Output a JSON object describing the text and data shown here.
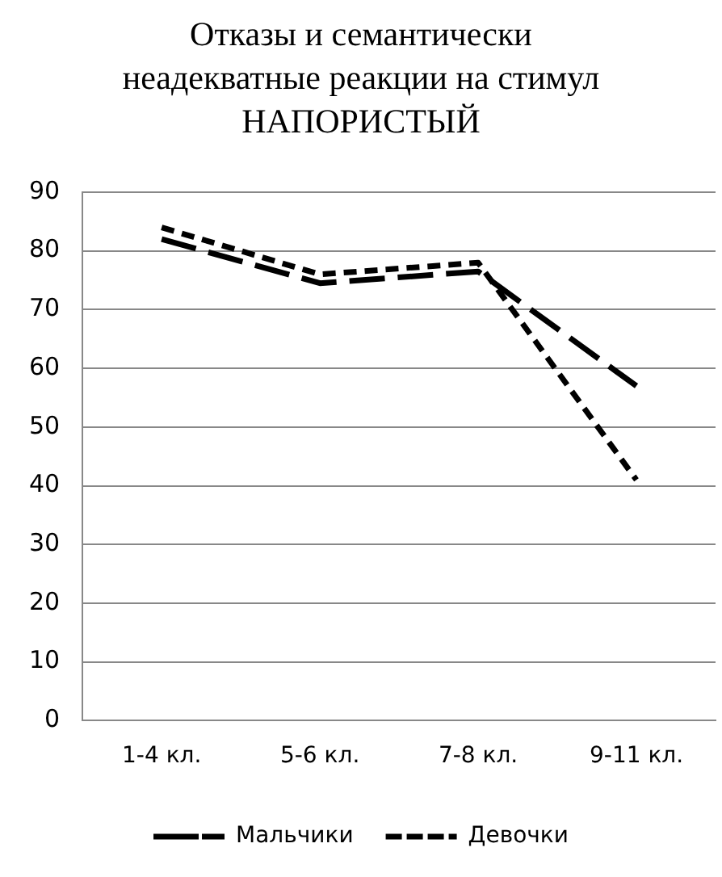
{
  "chart_data": {
    "type": "line",
    "title": "Отказы и семантически неадекватные реакции на стимул НАПОРИСТЫЙ",
    "categories": [
      "1-4 кл.",
      "5-6 кл.",
      "7-8 кл.",
      "9-11 кл."
    ],
    "series": [
      {
        "name": "Мальчики",
        "color": "#000000",
        "values": [
          82,
          74.5,
          76.5,
          57
        ],
        "line_style": "dashed"
      },
      {
        "name": "Девочки",
        "color": "#000000",
        "values": [
          84,
          76,
          78,
          41
        ],
        "line_style": "dotted"
      }
    ],
    "ylim": [
      0,
      90
    ],
    "yticks": [
      0,
      10,
      20,
      30,
      40,
      50,
      60,
      70,
      80,
      90
    ],
    "grid": "y",
    "legend": "bottom",
    "marker": "none"
  }
}
